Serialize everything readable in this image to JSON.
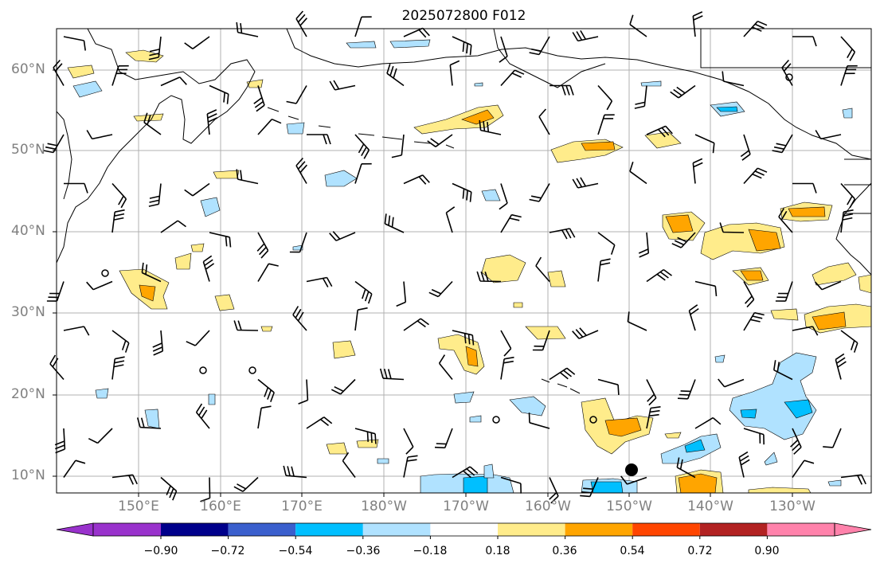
{
  "title": "2025072800 F012",
  "lat_labels": [
    "60°N",
    "50°N",
    "40°N",
    "30°N",
    "20°N",
    "10°N"
  ],
  "lon_labels": [
    "150°E",
    "160°E",
    "170°E",
    "180°W",
    "170°W",
    "160°W",
    "150°W",
    "140°W",
    "130°W"
  ],
  "colorbar": {
    "ticks": [
      "−0.90",
      "−0.72",
      "−0.54",
      "−0.36",
      "−0.18",
      "0.18",
      "0.36",
      "0.54",
      "0.72",
      "0.90"
    ],
    "colors": [
      "#9932cc",
      "#00008b",
      "#3a5fcd",
      "#00bfff",
      "#b0e2ff",
      "#ffffff",
      "#ffec8b",
      "#ffa500",
      "#ff4500",
      "#b22222",
      "#ff82ab"
    ]
  }
}
